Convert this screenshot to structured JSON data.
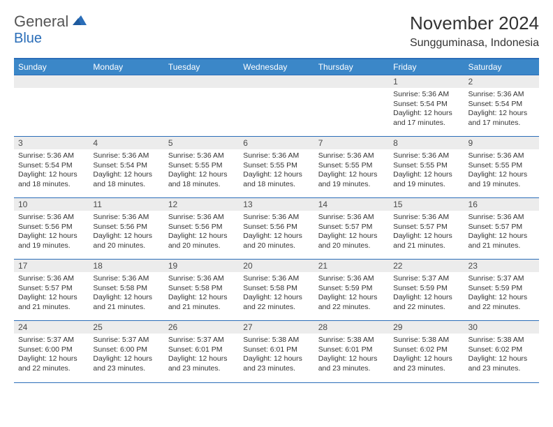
{
  "logo": {
    "text1": "General",
    "text2": "Blue"
  },
  "header": {
    "month": "November 2024",
    "location": "Sungguminasa, Indonesia"
  },
  "colors": {
    "brand_blue": "#2a6db8",
    "header_bg": "#3b87c8",
    "row_band": "#ececec",
    "text": "#333333",
    "border": "#2a6db8"
  },
  "weekdays": [
    "Sunday",
    "Monday",
    "Tuesday",
    "Wednesday",
    "Thursday",
    "Friday",
    "Saturday"
  ],
  "weeks": [
    [
      {
        "n": "",
        "lines": []
      },
      {
        "n": "",
        "lines": []
      },
      {
        "n": "",
        "lines": []
      },
      {
        "n": "",
        "lines": []
      },
      {
        "n": "",
        "lines": []
      },
      {
        "n": "1",
        "lines": [
          "Sunrise: 5:36 AM",
          "Sunset: 5:54 PM",
          "Daylight: 12 hours",
          "and 17 minutes."
        ]
      },
      {
        "n": "2",
        "lines": [
          "Sunrise: 5:36 AM",
          "Sunset: 5:54 PM",
          "Daylight: 12 hours",
          "and 17 minutes."
        ]
      }
    ],
    [
      {
        "n": "3",
        "lines": [
          "Sunrise: 5:36 AM",
          "Sunset: 5:54 PM",
          "Daylight: 12 hours",
          "and 18 minutes."
        ]
      },
      {
        "n": "4",
        "lines": [
          "Sunrise: 5:36 AM",
          "Sunset: 5:54 PM",
          "Daylight: 12 hours",
          "and 18 minutes."
        ]
      },
      {
        "n": "5",
        "lines": [
          "Sunrise: 5:36 AM",
          "Sunset: 5:55 PM",
          "Daylight: 12 hours",
          "and 18 minutes."
        ]
      },
      {
        "n": "6",
        "lines": [
          "Sunrise: 5:36 AM",
          "Sunset: 5:55 PM",
          "Daylight: 12 hours",
          "and 18 minutes."
        ]
      },
      {
        "n": "7",
        "lines": [
          "Sunrise: 5:36 AM",
          "Sunset: 5:55 PM",
          "Daylight: 12 hours",
          "and 19 minutes."
        ]
      },
      {
        "n": "8",
        "lines": [
          "Sunrise: 5:36 AM",
          "Sunset: 5:55 PM",
          "Daylight: 12 hours",
          "and 19 minutes."
        ]
      },
      {
        "n": "9",
        "lines": [
          "Sunrise: 5:36 AM",
          "Sunset: 5:55 PM",
          "Daylight: 12 hours",
          "and 19 minutes."
        ]
      }
    ],
    [
      {
        "n": "10",
        "lines": [
          "Sunrise: 5:36 AM",
          "Sunset: 5:56 PM",
          "Daylight: 12 hours",
          "and 19 minutes."
        ]
      },
      {
        "n": "11",
        "lines": [
          "Sunrise: 5:36 AM",
          "Sunset: 5:56 PM",
          "Daylight: 12 hours",
          "and 20 minutes."
        ]
      },
      {
        "n": "12",
        "lines": [
          "Sunrise: 5:36 AM",
          "Sunset: 5:56 PM",
          "Daylight: 12 hours",
          "and 20 minutes."
        ]
      },
      {
        "n": "13",
        "lines": [
          "Sunrise: 5:36 AM",
          "Sunset: 5:56 PM",
          "Daylight: 12 hours",
          "and 20 minutes."
        ]
      },
      {
        "n": "14",
        "lines": [
          "Sunrise: 5:36 AM",
          "Sunset: 5:57 PM",
          "Daylight: 12 hours",
          "and 20 minutes."
        ]
      },
      {
        "n": "15",
        "lines": [
          "Sunrise: 5:36 AM",
          "Sunset: 5:57 PM",
          "Daylight: 12 hours",
          "and 21 minutes."
        ]
      },
      {
        "n": "16",
        "lines": [
          "Sunrise: 5:36 AM",
          "Sunset: 5:57 PM",
          "Daylight: 12 hours",
          "and 21 minutes."
        ]
      }
    ],
    [
      {
        "n": "17",
        "lines": [
          "Sunrise: 5:36 AM",
          "Sunset: 5:57 PM",
          "Daylight: 12 hours",
          "and 21 minutes."
        ]
      },
      {
        "n": "18",
        "lines": [
          "Sunrise: 5:36 AM",
          "Sunset: 5:58 PM",
          "Daylight: 12 hours",
          "and 21 minutes."
        ]
      },
      {
        "n": "19",
        "lines": [
          "Sunrise: 5:36 AM",
          "Sunset: 5:58 PM",
          "Daylight: 12 hours",
          "and 21 minutes."
        ]
      },
      {
        "n": "20",
        "lines": [
          "Sunrise: 5:36 AM",
          "Sunset: 5:58 PM",
          "Daylight: 12 hours",
          "and 22 minutes."
        ]
      },
      {
        "n": "21",
        "lines": [
          "Sunrise: 5:36 AM",
          "Sunset: 5:59 PM",
          "Daylight: 12 hours",
          "and 22 minutes."
        ]
      },
      {
        "n": "22",
        "lines": [
          "Sunrise: 5:37 AM",
          "Sunset: 5:59 PM",
          "Daylight: 12 hours",
          "and 22 minutes."
        ]
      },
      {
        "n": "23",
        "lines": [
          "Sunrise: 5:37 AM",
          "Sunset: 5:59 PM",
          "Daylight: 12 hours",
          "and 22 minutes."
        ]
      }
    ],
    [
      {
        "n": "24",
        "lines": [
          "Sunrise: 5:37 AM",
          "Sunset: 6:00 PM",
          "Daylight: 12 hours",
          "and 22 minutes."
        ]
      },
      {
        "n": "25",
        "lines": [
          "Sunrise: 5:37 AM",
          "Sunset: 6:00 PM",
          "Daylight: 12 hours",
          "and 23 minutes."
        ]
      },
      {
        "n": "26",
        "lines": [
          "Sunrise: 5:37 AM",
          "Sunset: 6:01 PM",
          "Daylight: 12 hours",
          "and 23 minutes."
        ]
      },
      {
        "n": "27",
        "lines": [
          "Sunrise: 5:38 AM",
          "Sunset: 6:01 PM",
          "Daylight: 12 hours",
          "and 23 minutes."
        ]
      },
      {
        "n": "28",
        "lines": [
          "Sunrise: 5:38 AM",
          "Sunset: 6:01 PM",
          "Daylight: 12 hours",
          "and 23 minutes."
        ]
      },
      {
        "n": "29",
        "lines": [
          "Sunrise: 5:38 AM",
          "Sunset: 6:02 PM",
          "Daylight: 12 hours",
          "and 23 minutes."
        ]
      },
      {
        "n": "30",
        "lines": [
          "Sunrise: 5:38 AM",
          "Sunset: 6:02 PM",
          "Daylight: 12 hours",
          "and 23 minutes."
        ]
      }
    ]
  ]
}
